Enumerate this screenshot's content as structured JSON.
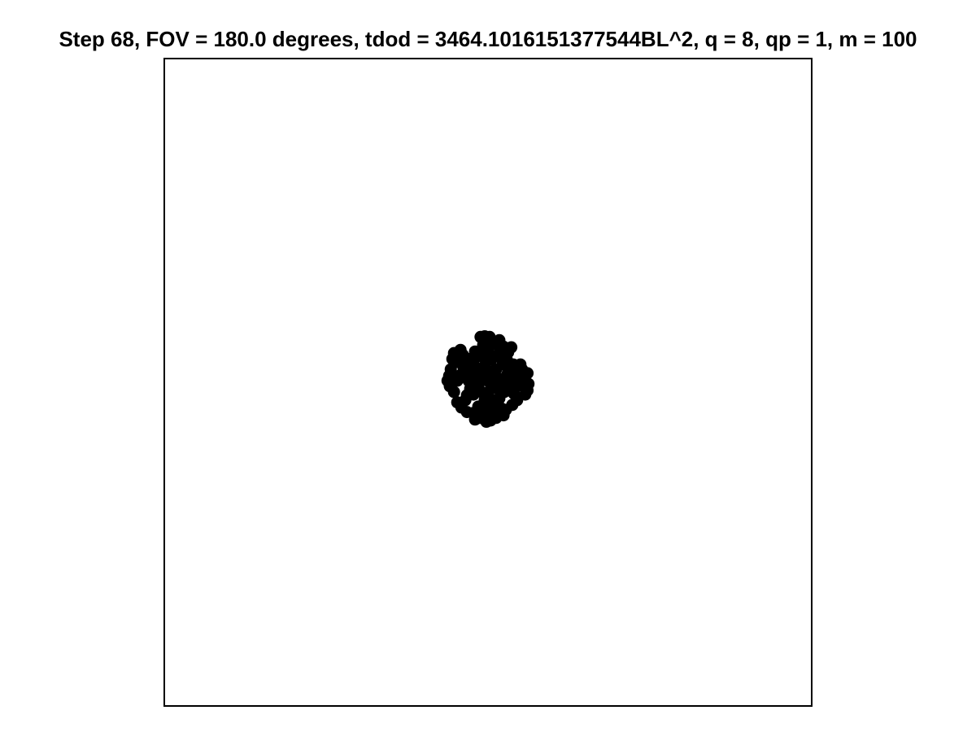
{
  "chart_data": {
    "type": "scatter",
    "title": "Step 68, FOV = 180.0 degrees, tdod = 3464.1016151377544BL^2, q = 8, qp = 1, m = 100",
    "xlabel": "",
    "ylabel": "",
    "xlim": [
      -10,
      10
    ],
    "ylim": [
      -10,
      10
    ],
    "grid": false,
    "axis_ticks": false,
    "marker_color": "#000000",
    "frame_color": "#000000",
    "points": [
      [
        -0.23,
        1.4
      ],
      [
        -0.1,
        1.42
      ],
      [
        0.05,
        1.4
      ],
      [
        0.35,
        1.3
      ],
      [
        0.25,
        1.18
      ],
      [
        0.48,
        1.1
      ],
      [
        0.72,
        1.08
      ],
      [
        0.62,
        0.92
      ],
      [
        0.4,
        0.75
      ],
      [
        0.58,
        0.7
      ],
      [
        0.78,
        0.55
      ],
      [
        0.92,
        0.32
      ],
      [
        1.05,
        0.4
      ],
      [
        1.08,
        0.1
      ],
      [
        1.22,
        0.28
      ],
      [
        1.25,
        -0.05
      ],
      [
        1.22,
        -0.25
      ],
      [
        1.15,
        -0.38
      ],
      [
        0.9,
        -0.55
      ],
      [
        0.75,
        -0.7
      ],
      [
        0.55,
        -0.85
      ],
      [
        0.48,
        -1.02
      ],
      [
        0.25,
        -1.1
      ],
      [
        0.08,
        -1.18
      ],
      [
        -0.05,
        -1.22
      ],
      [
        0.05,
        -1.05
      ],
      [
        -0.25,
        -1.1
      ],
      [
        -0.4,
        -1.15
      ],
      [
        -0.45,
        -0.95
      ],
      [
        -0.65,
        -0.92
      ],
      [
        -0.82,
        -0.78
      ],
      [
        -0.95,
        -0.62
      ],
      [
        -0.65,
        -0.4
      ],
      [
        -0.45,
        -0.38
      ],
      [
        -0.2,
        -0.3
      ],
      [
        0.0,
        -0.35
      ],
      [
        0.1,
        -0.15
      ],
      [
        0.2,
        -0.05
      ],
      [
        0.35,
        0.0
      ],
      [
        0.45,
        0.1
      ],
      [
        0.05,
        0.0
      ],
      [
        -0.05,
        0.18
      ],
      [
        0.15,
        0.18
      ],
      [
        0.0,
        0.35
      ],
      [
        -0.1,
        0.5
      ],
      [
        0.25,
        0.4
      ],
      [
        -0.3,
        0.4
      ],
      [
        -0.55,
        0.3
      ],
      [
        -0.75,
        0.42
      ],
      [
        -0.82,
        0.58
      ],
      [
        -0.62,
        0.72
      ],
      [
        -0.78,
        0.85
      ],
      [
        -0.92,
        0.92
      ],
      [
        -1.05,
        0.9
      ],
      [
        -0.85,
        1.0
      ],
      [
        -1.0,
        0.62
      ],
      [
        -1.15,
        0.4
      ],
      [
        -1.2,
        0.2
      ],
      [
        -1.25,
        0.05
      ],
      [
        -1.18,
        -0.12
      ],
      [
        -1.05,
        -0.3
      ],
      [
        -0.2,
        0.05
      ],
      [
        -0.3,
        -0.1
      ],
      [
        0.3,
        -0.2
      ],
      [
        0.5,
        -0.3
      ],
      [
        0.35,
        -0.5
      ],
      [
        0.15,
        -0.55
      ],
      [
        -0.1,
        -0.55
      ],
      [
        -0.4,
        0.1
      ],
      [
        0.6,
        0.25
      ],
      [
        0.8,
        0.15
      ],
      [
        -0.6,
        0.05
      ],
      [
        0.1,
        0.7
      ],
      [
        -0.2,
        0.8
      ],
      [
        0.45,
        0.55
      ],
      [
        -1.1,
        0.72
      ],
      [
        1.0,
        0.55
      ],
      [
        0.8,
        -0.35
      ],
      [
        -0.7,
        -0.55
      ],
      [
        -0.3,
        -0.75
      ],
      [
        0.2,
        -0.8
      ],
      [
        0.0,
        0.95
      ],
      [
        -0.45,
        0.6
      ],
      [
        0.65,
        -0.1
      ],
      [
        -0.85,
        0.22
      ],
      [
        0.95,
        -0.1
      ],
      [
        0.3,
        0.85
      ],
      [
        -0.15,
        1.15
      ],
      [
        0.55,
        0.95
      ],
      [
        -0.55,
        -0.2
      ],
      [
        0.2,
        0.25
      ],
      [
        -0.08,
        -0.82
      ],
      [
        0.7,
        0.45
      ],
      [
        -0.95,
        0.05
      ],
      [
        0.4,
        -0.8
      ],
      [
        1.1,
        0.2
      ],
      [
        -0.4,
        0.95
      ],
      [
        0.12,
        1.2
      ],
      [
        -0.65,
        0.55
      ],
      [
        0.0,
        -0.6
      ]
    ]
  }
}
